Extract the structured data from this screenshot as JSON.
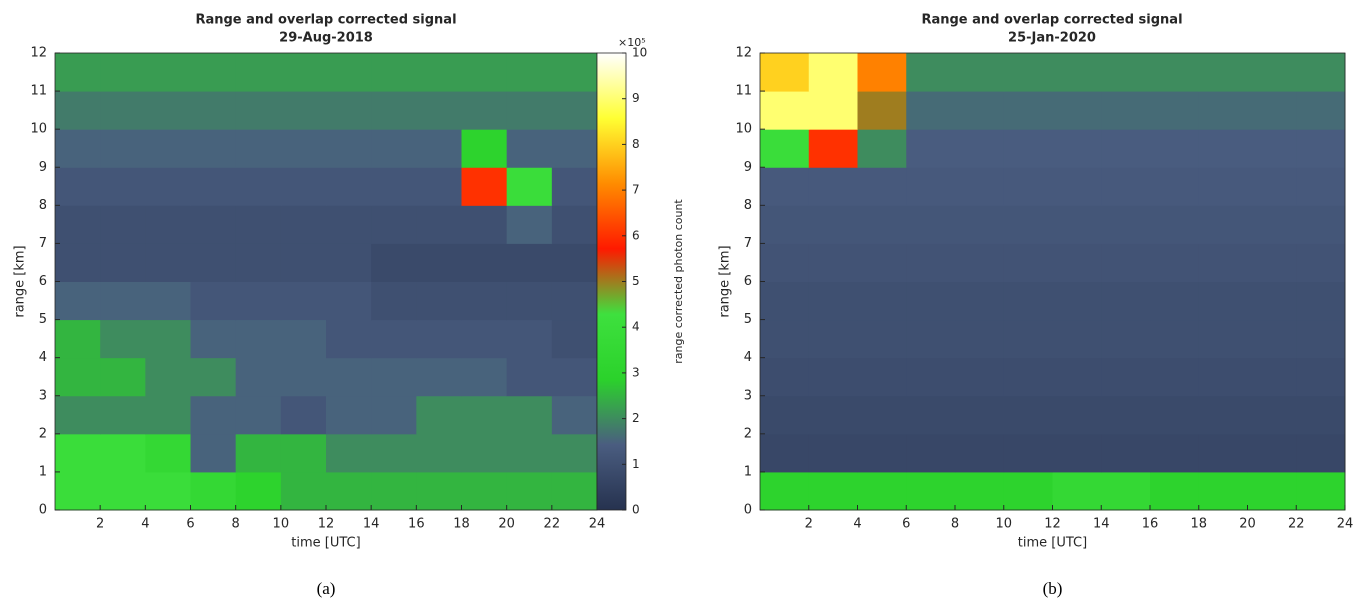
{
  "chart_data": [
    {
      "type": "heatmap",
      "title": "Range and overlap corrected signal",
      "subtitle": "29-Aug-2018",
      "x_label": "time [UTC]",
      "y_label": "range [km]",
      "caption": "(a)",
      "xbins": [
        0,
        2,
        4,
        6,
        8,
        10,
        12,
        14,
        16,
        18,
        20,
        22,
        24
      ],
      "ybins": [
        0,
        1,
        2,
        3,
        4,
        5,
        6,
        7,
        8,
        9,
        10,
        11,
        12
      ],
      "values": [
        [
          4,
          4,
          4,
          3.5,
          3,
          2.5,
          2.5,
          2.5,
          2.5,
          2.5,
          2.5,
          2.5
        ],
        [
          4,
          4,
          3.5,
          1.5,
          2.5,
          2.5,
          2,
          2,
          2,
          2,
          2,
          2
        ],
        [
          2,
          2,
          2,
          1.5,
          1.5,
          1.2,
          1.5,
          1.5,
          2,
          2,
          2,
          1.5
        ],
        [
          2.5,
          2.5,
          2,
          2,
          1.5,
          1.5,
          1.5,
          1.5,
          1.5,
          1.5,
          1.2,
          1.2
        ],
        [
          2.5,
          2,
          2,
          1.5,
          1.5,
          1.5,
          1.2,
          1.2,
          1.2,
          1.2,
          1.2,
          1
        ],
        [
          1.5,
          1.5,
          1.5,
          1.2,
          1.2,
          1.2,
          1.2,
          1,
          1,
          1,
          1,
          1
        ],
        [
          1,
          1,
          1,
          1,
          1,
          1,
          1,
          0.8,
          0.8,
          0.8,
          0.8,
          0.8
        ],
        [
          1,
          1,
          1,
          1,
          1,
          1,
          1,
          1,
          1,
          1,
          1.5,
          1
        ],
        [
          1.2,
          1.2,
          1.2,
          1.2,
          1.2,
          1.2,
          1.2,
          1.2,
          1.2,
          6,
          4,
          1.2
        ],
        [
          1.5,
          1.5,
          1.5,
          1.5,
          1.5,
          1.5,
          1.5,
          1.5,
          1.5,
          3,
          1.5,
          1.5
        ],
        [
          1.8,
          1.8,
          1.8,
          1.8,
          1.8,
          1.8,
          1.8,
          1.8,
          1.8,
          1.8,
          1.8,
          1.8
        ],
        [
          2.2,
          2.2,
          2.2,
          2.2,
          2.2,
          2.2,
          2.2,
          2.2,
          2.2,
          2.2,
          2.2,
          2.2
        ]
      ],
      "xlim": [
        0,
        24
      ],
      "xticks": [
        2,
        4,
        6,
        8,
        10,
        12,
        14,
        16,
        18,
        20,
        22,
        24
      ],
      "ylim": [
        0,
        12
      ],
      "yticks": [
        0,
        1,
        2,
        3,
        4,
        5,
        6,
        7,
        8,
        9,
        10,
        11,
        12
      ],
      "colormap": [
        "#26324f",
        "#4a5d80",
        "#2bd22b",
        "#3ee03e",
        "#ff1a00",
        "#ff8c00",
        "#ffff33",
        "#ffffff"
      ],
      "clim": [
        0,
        10
      ],
      "cticks": [
        0,
        1,
        2,
        3,
        4,
        5,
        6,
        7,
        8,
        9,
        10
      ],
      "colorbar_label": "range corrected photon count",
      "colorbar_exponent": "×10⁵"
    },
    {
      "type": "heatmap",
      "title": "Range and overlap corrected signal",
      "subtitle": "25-Jan-2020",
      "x_label": "time [UTC]",
      "y_label": "range [km]",
      "caption": "(b)",
      "xbins": [
        0,
        2,
        4,
        6,
        8,
        10,
        12,
        14,
        16,
        18,
        20,
        22,
        24
      ],
      "ybins": [
        0,
        1,
        2,
        3,
        4,
        5,
        6,
        7,
        8,
        9,
        10,
        11,
        12
      ],
      "values": [
        [
          3,
          3,
          3,
          3,
          3,
          3,
          3.5,
          3.5,
          3,
          3,
          3,
          3
        ],
        [
          0.7,
          0.7,
          0.7,
          0.7,
          0.7,
          0.7,
          0.7,
          0.7,
          0.7,
          0.7,
          0.7,
          0.7
        ],
        [
          0.8,
          0.8,
          0.8,
          0.8,
          0.8,
          0.8,
          0.8,
          0.8,
          0.8,
          0.8,
          0.8,
          0.8
        ],
        [
          0.9,
          0.9,
          0.9,
          0.9,
          0.9,
          0.9,
          0.9,
          0.9,
          0.9,
          0.9,
          0.9,
          0.9
        ],
        [
          1,
          1,
          1,
          1,
          1,
          1,
          1,
          1,
          1,
          1,
          1,
          1
        ],
        [
          1,
          1,
          1,
          1,
          1,
          1,
          1,
          1,
          1,
          1,
          1,
          1
        ],
        [
          1.1,
          1.1,
          1.1,
          1.1,
          1.1,
          1.1,
          1.1,
          1.1,
          1.1,
          1.1,
          1.1,
          1.1
        ],
        [
          1.2,
          1.2,
          1.2,
          1.2,
          1.2,
          1.2,
          1.2,
          1.2,
          1.2,
          1.2,
          1.2,
          1.2
        ],
        [
          1.3,
          1.3,
          1.3,
          1.3,
          1.3,
          1.3,
          1.3,
          1.3,
          1.3,
          1.3,
          1.3,
          1.3
        ],
        [
          4,
          6,
          2,
          1.4,
          1.4,
          1.4,
          1.4,
          1.4,
          1.4,
          1.4,
          1.4,
          1.4
        ],
        [
          9,
          9,
          5,
          1.6,
          1.6,
          1.6,
          1.6,
          1.6,
          1.6,
          1.6,
          1.6,
          1.6
        ],
        [
          8,
          9,
          7,
          2,
          2,
          2,
          2,
          2,
          2,
          2,
          2,
          2
        ]
      ],
      "xlim": [
        0,
        24
      ],
      "xticks": [
        2,
        4,
        6,
        8,
        10,
        12,
        14,
        16,
        18,
        20,
        22,
        24
      ],
      "ylim": [
        0,
        12
      ],
      "yticks": [
        0,
        1,
        2,
        3,
        4,
        5,
        6,
        7,
        8,
        9,
        10,
        11,
        12
      ],
      "colormap": [
        "#26324f",
        "#4a5d80",
        "#2bd22b",
        "#3ee03e",
        "#ff1a00",
        "#ff8c00",
        "#ffff33",
        "#ffffff"
      ],
      "clim": [
        0,
        10
      ]
    }
  ]
}
